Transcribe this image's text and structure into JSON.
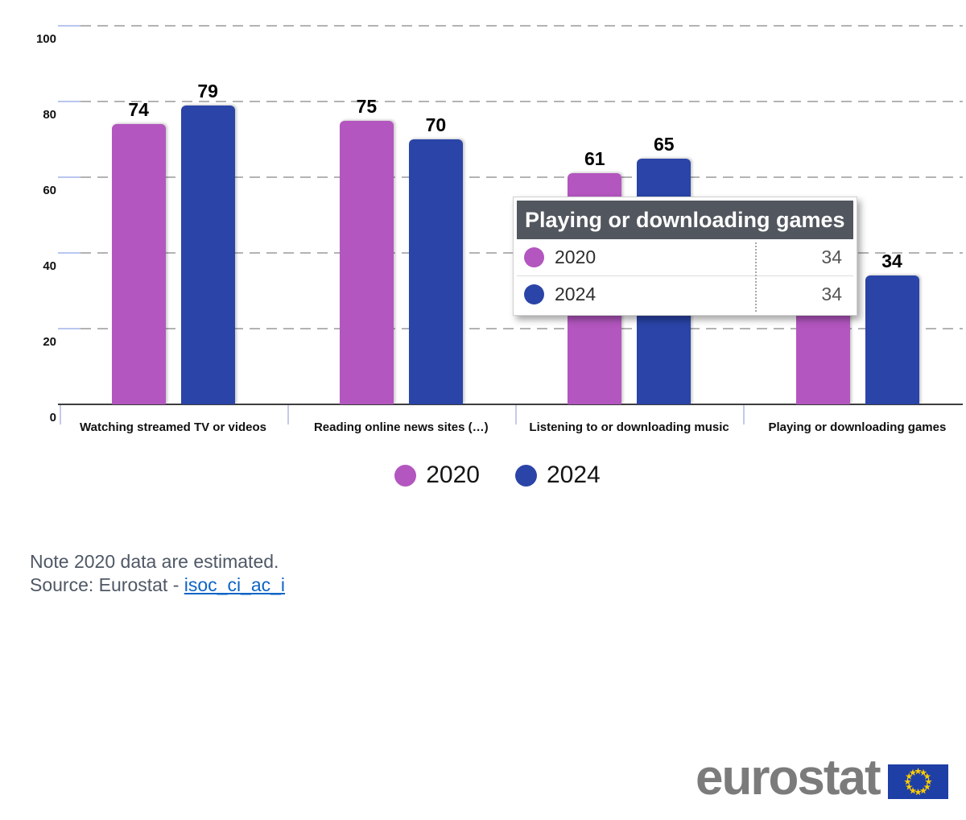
{
  "chart_data": {
    "type": "bar",
    "title": "",
    "categories": [
      "Watching streamed TV or videos",
      "Reading online news sites (…)",
      "Listening to or downloading music",
      "Playing or downloading games"
    ],
    "series": [
      {
        "name": "2020",
        "color": "#b356bf",
        "values": [
          74,
          75,
          61,
          34
        ]
      },
      {
        "name": "2024",
        "color": "#2a44a7",
        "values": [
          79,
          70,
          65,
          34
        ]
      }
    ],
    "xlabel": "",
    "ylabel": "",
    "ylim": [
      0,
      100
    ],
    "yticks": [
      0,
      20,
      40,
      60,
      80,
      100
    ],
    "grid": "horizontal-dashed",
    "legend_position": "bottom"
  },
  "tooltip": {
    "title": "Playing or downloading games",
    "rows": [
      {
        "label": "2020",
        "value": "34",
        "color": "#b356bf"
      },
      {
        "label": "2024",
        "value": "34",
        "color": "#2a44a7"
      }
    ]
  },
  "notes": {
    "line1": "Note 2020 data are estimated.",
    "source_prefix": "Source: Eurostat - ",
    "source_link": "isoc_ci_ac_i"
  },
  "logo": {
    "text": "eurostat",
    "flag_icon": "eu-flag-icon",
    "flag_blue": "#1e3fa6",
    "star_yellow": "#ffcc00"
  },
  "colors": {
    "grid": "#b3b3b3",
    "grid_cap": "#b9c6ef",
    "axis": "#3d3d3d",
    "tooltip_header_bg": "#52565e",
    "note_text": "#4f5866",
    "link": "#0d64c5",
    "logo_gray": "#7b7b7b"
  }
}
